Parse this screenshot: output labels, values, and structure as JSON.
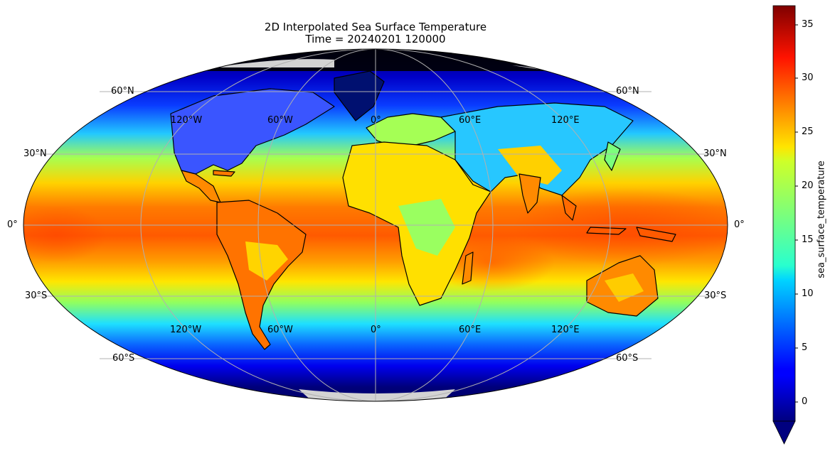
{
  "title": {
    "line1": "2D Interpolated Sea Surface Temperature",
    "line2": "Time = 20240201 120000"
  },
  "map": {
    "projection": "Mollweide",
    "lat_labels_left": [
      "60°N",
      "30°N",
      "0°",
      "30°S",
      "60°S"
    ],
    "lat_labels_right": [
      "60°N",
      "30°N",
      "0°",
      "30°S",
      "60°S"
    ],
    "lon_labels_upper": [
      "120°W",
      "60°W",
      "0°",
      "60°E",
      "120°E"
    ],
    "lon_labels_lower": [
      "120°W",
      "60°W",
      "0°",
      "60°E",
      "120°E"
    ],
    "land_color": "#d3d3d3",
    "gridline_color": "#b0b0b0",
    "coastline_color": "#000000"
  },
  "colorbar": {
    "label": "sea_surface_temperature",
    "colormap": "jet",
    "ticks": [
      "35",
      "30",
      "25",
      "20",
      "15",
      "10",
      "5",
      "0"
    ],
    "range": [
      -2,
      37
    ],
    "extend": "min"
  }
}
